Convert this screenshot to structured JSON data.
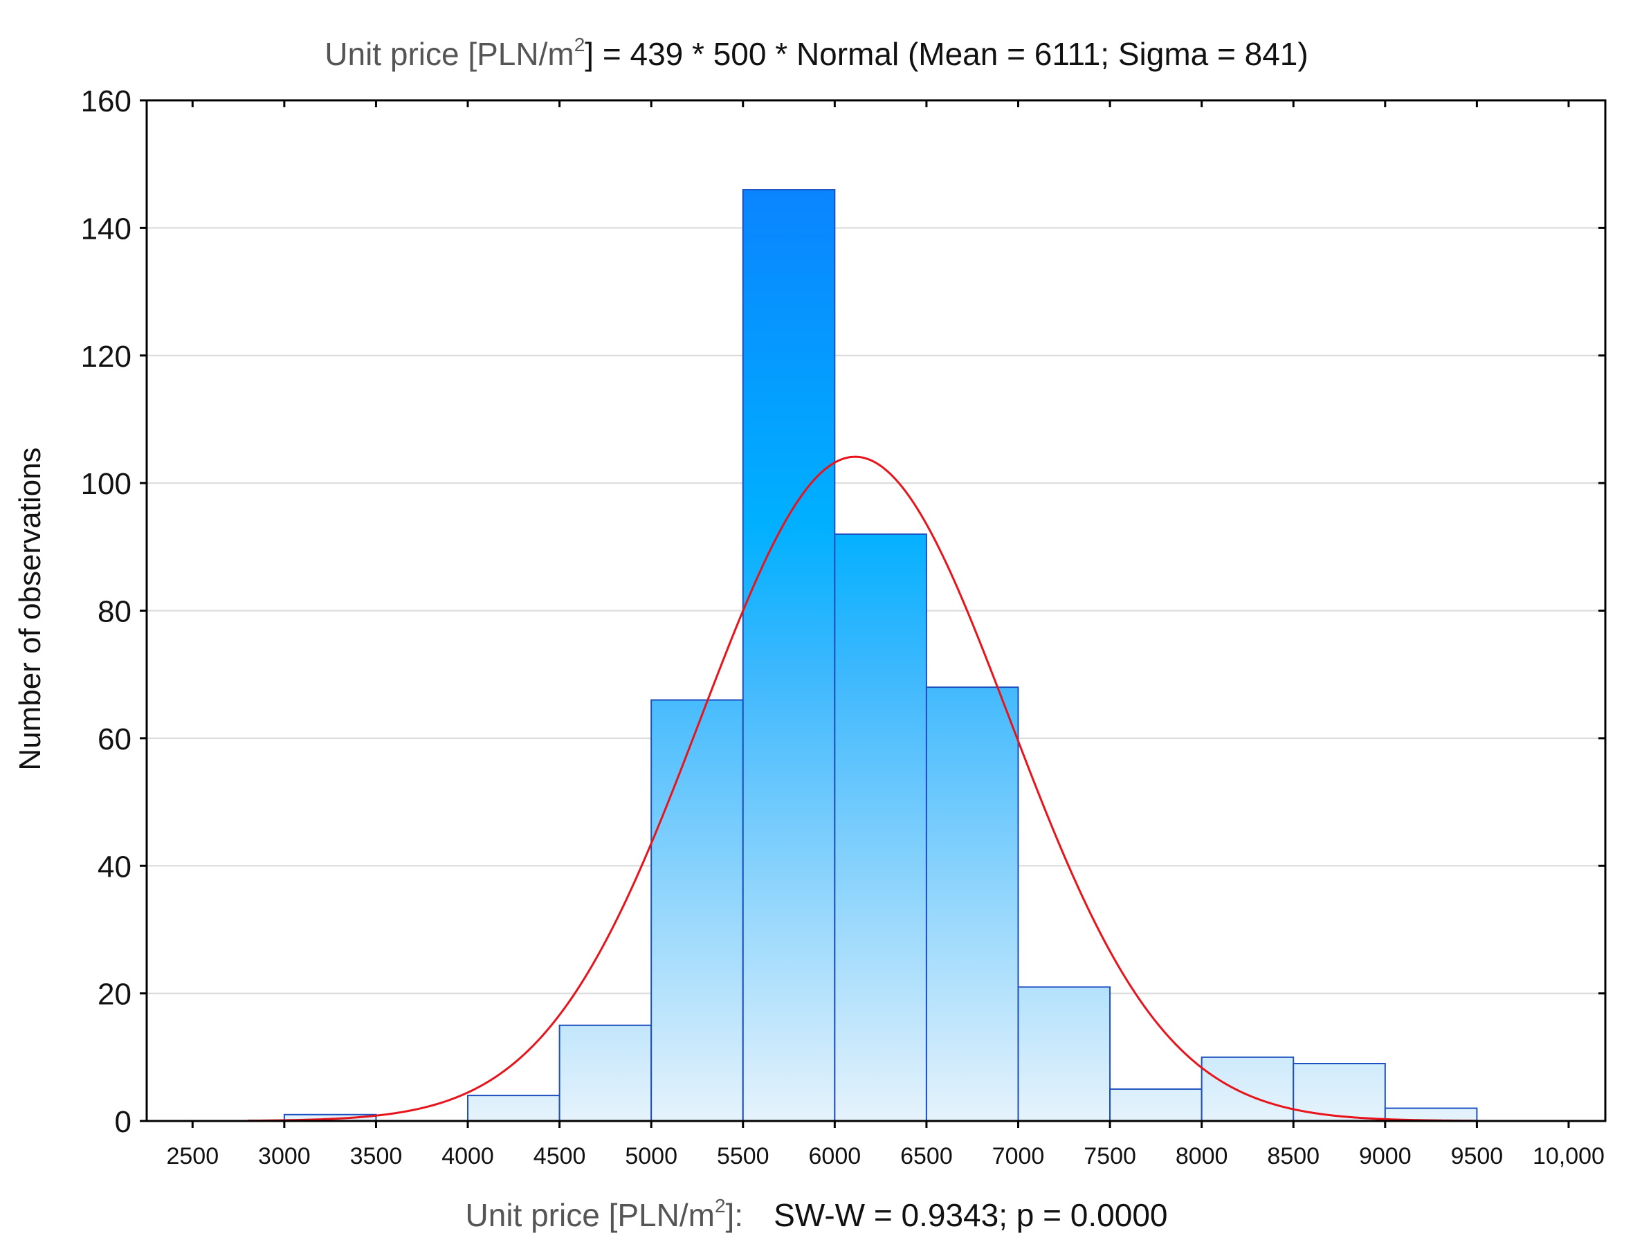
{
  "chart_data": {
    "type": "bar",
    "title": {
      "prefix": "Unit price [PLN/m",
      "sup": "2",
      "middle": "] = 439 * 500 * ",
      "rest": "Normal (Mean = 6111; Sigma = 841)"
    },
    "xlabel": {
      "prefix": "Unit price [PLN/m",
      "sup": "2",
      "suffix": "]:",
      "stat": "SW-W = 0.9343; p = 0.0000"
    },
    "ylabel": "Number of observations",
    "xlim": [
      2250,
      10200
    ],
    "ylim": [
      0,
      160
    ],
    "x_ticks": [
      2500,
      3000,
      3500,
      4000,
      4500,
      5000,
      5500,
      6000,
      6500,
      7000,
      7500,
      8000,
      8500,
      9000,
      9500,
      10000
    ],
    "x_tick_labels": [
      "2500",
      "3000",
      "3500",
      "4000",
      "4500",
      "5000",
      "5500",
      "6000",
      "6500",
      "7000",
      "7500",
      "8000",
      "8500",
      "9000",
      "9500",
      "10,000"
    ],
    "y_ticks": [
      0,
      20,
      40,
      60,
      80,
      100,
      120,
      140,
      160
    ],
    "y_tick_labels": [
      "0",
      "20",
      "40",
      "60",
      "80",
      "100",
      "120",
      "140",
      "160"
    ],
    "bins": [
      {
        "from": 3000,
        "to": 3500,
        "count": 1
      },
      {
        "from": 3500,
        "to": 4000,
        "count": 0
      },
      {
        "from": 4000,
        "to": 4500,
        "count": 4
      },
      {
        "from": 4500,
        "to": 5000,
        "count": 15
      },
      {
        "from": 5000,
        "to": 5500,
        "count": 66
      },
      {
        "from": 5500,
        "to": 6000,
        "count": 146
      },
      {
        "from": 6000,
        "to": 6500,
        "count": 92
      },
      {
        "from": 6500,
        "to": 7000,
        "count": 68
      },
      {
        "from": 7000,
        "to": 7500,
        "count": 21
      },
      {
        "from": 7500,
        "to": 8000,
        "count": 5
      },
      {
        "from": 8000,
        "to": 8500,
        "count": 10
      },
      {
        "from": 8500,
        "to": 9000,
        "count": 9
      },
      {
        "from": 9000,
        "to": 9500,
        "count": 2
      }
    ],
    "fit": {
      "type": "normal",
      "n": 439,
      "bin_width": 500,
      "mean": 6111,
      "sigma": 841,
      "x_range": [
        2800,
        9500
      ],
      "color": "#e8141b"
    },
    "grid": "horizontal",
    "colors": {
      "bar_top": "#0a84ff",
      "bar_mid": "#00b0ff",
      "bar_bottom": "#e6f3fc",
      "bar_edge": "#1c4fbf",
      "axis": "#000000"
    }
  }
}
